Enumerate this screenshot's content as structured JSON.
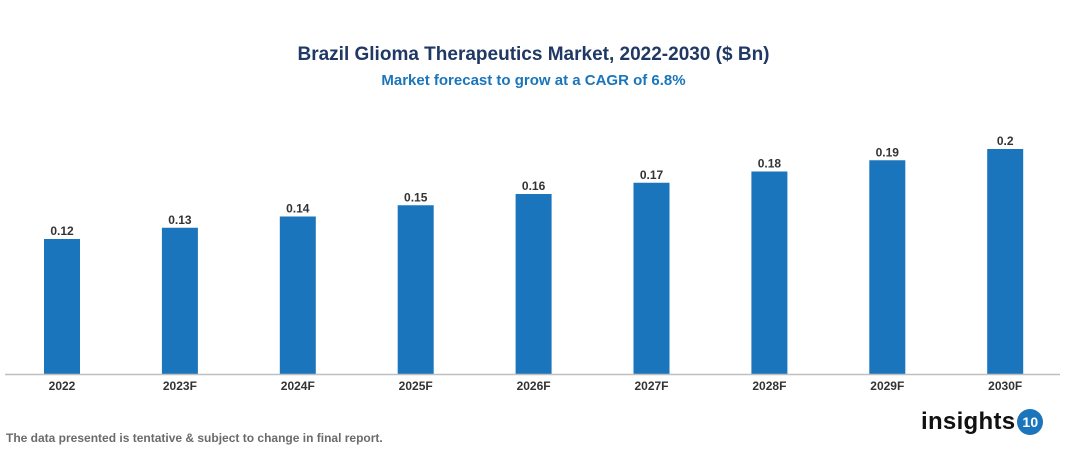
{
  "chart_data": {
    "type": "bar",
    "title": "Brazil Glioma Therapeutics Market, 2022-2030 ($ Bn)",
    "subtitle": "Market forecast to grow at a CAGR of 6.8%",
    "categories": [
      "2022",
      "2023F",
      "2024F",
      "2025F",
      "2026F",
      "2027F",
      "2028F",
      "2029F",
      "2030F"
    ],
    "values": [
      0.12,
      0.13,
      0.14,
      0.15,
      0.16,
      0.17,
      0.18,
      0.19,
      0.2
    ],
    "data_labels": [
      "0.12",
      "0.13",
      "0.14",
      "0.15",
      "0.16",
      "0.17",
      "0.18",
      "0.19",
      "0.2"
    ],
    "xlabel": "",
    "ylabel": "",
    "ylim": [
      0,
      0.2
    ],
    "grid": false,
    "bar_color": "#1a75bc"
  },
  "footnote": "The data presented is tentative & subject to change in final report.",
  "logo": {
    "text": "insights",
    "badge": "10"
  }
}
